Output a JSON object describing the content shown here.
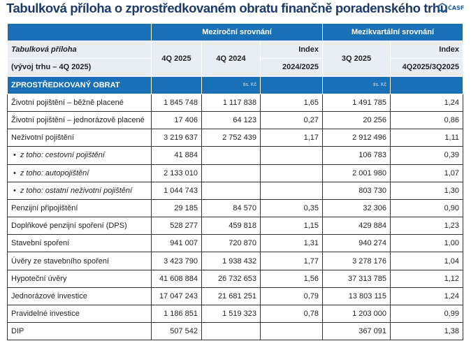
{
  "title": "Tabulková příloha o zprostředkovaném obratu finančně poradenského trhu",
  "logo": "ČASF",
  "header": {
    "group_yoy": "Meziroční srovnání",
    "group_qoq": "Mezikvartální srovnání",
    "label_line1": "Tabulková příloha",
    "label_line2": "(vývoj trhu – 4Q 2025)",
    "col_4q2025": "4Q 2025",
    "col_4q2024": "4Q 2024",
    "col_index": "Index",
    "col_index_yoy": "2024/2025",
    "col_3q2025": "3Q 2025",
    "col_index2": "Index",
    "col_index_qoq": "4Q2025/3Q2025"
  },
  "section": {
    "label": "ZPROSTŘEDKOVANÝ OBRAT",
    "unit1": "tis. Kč",
    "unit2": "tis. Kč"
  },
  "rows": [
    {
      "label": "Životní pojištění – běžně placené",
      "q4_2025": "1 845 748",
      "q4_2024": "1 117 838",
      "idx_yoy": "1,65",
      "q3_2025": "1 491 785",
      "idx_qoq": "1,24"
    },
    {
      "label": "Životní pojištění – jednorázově placené",
      "q4_2025": "17 406",
      "q4_2024": "64 123",
      "idx_yoy": "0,27",
      "q3_2025": "20 256",
      "idx_qoq": "0,86"
    },
    {
      "label": "Neživotní pojištění",
      "q4_2025": "3 219 637",
      "q4_2024": "2 752 439",
      "idx_yoy": "1,17",
      "q3_2025": "2 912 496",
      "idx_qoq": "1,11"
    },
    {
      "label": "z toho: cestovní pojištění",
      "sub": true,
      "q4_2025": "41 884",
      "q4_2024": "",
      "idx_yoy": "",
      "q3_2025": "106 783",
      "idx_qoq": "0,39"
    },
    {
      "label": "z toho: autopojištění",
      "sub": true,
      "q4_2025": "2 133 010",
      "q4_2024": "",
      "idx_yoy": "",
      "q3_2025": "2 001 980",
      "idx_qoq": "1,07"
    },
    {
      "label": "z toho: ostatní neživotní pojištění",
      "sub": true,
      "q4_2025": "1 044 743",
      "q4_2024": "",
      "idx_yoy": "",
      "q3_2025": "803 730",
      "idx_qoq": "1,30"
    },
    {
      "label": "Penzijní připojištění",
      "q4_2025": "29 185",
      "q4_2024": "84 570",
      "idx_yoy": "0,35",
      "q3_2025": "32 306",
      "idx_qoq": "0,90"
    },
    {
      "label": "Doplňkové penzijní spoření (DPS)",
      "q4_2025": "528 277",
      "q4_2024": "459 818",
      "idx_yoy": "1,15",
      "q3_2025": "429 884",
      "idx_qoq": "1,23"
    },
    {
      "label": "Stavební spoření",
      "q4_2025": "941 007",
      "q4_2024": "720 870",
      "idx_yoy": "1,31",
      "q3_2025": "940 274",
      "idx_qoq": "1,00"
    },
    {
      "label": "Úvěry ze stavebního spoření",
      "q4_2025": "3 423 790",
      "q4_2024": "1 938 432",
      "idx_yoy": "1,77",
      "q3_2025": "3 278 176",
      "idx_qoq": "1,04"
    },
    {
      "label": "Hypoteční úvěry",
      "q4_2025": "41 608 884",
      "q4_2024": "26 732 653",
      "idx_yoy": "1,56",
      "q3_2025": "37 313 785",
      "idx_qoq": "1,12"
    },
    {
      "label": "Jednorázové investice",
      "q4_2025": "17 047 243",
      "q4_2024": "21 681 251",
      "idx_yoy": "0,79",
      "q3_2025": "13 803 115",
      "idx_qoq": "1,24"
    },
    {
      "label": "Pravidelné investice",
      "q4_2025": "1 186 851",
      "q4_2024": "1 519 323",
      "idx_yoy": "0,78",
      "q3_2025": "1 203 000",
      "idx_qoq": "0,99"
    },
    {
      "label": "DIP",
      "q4_2025": "507 542",
      "q4_2024": "",
      "idx_yoy": "",
      "q3_2025": "367 091",
      "idx_qoq": "1,38"
    }
  ]
}
